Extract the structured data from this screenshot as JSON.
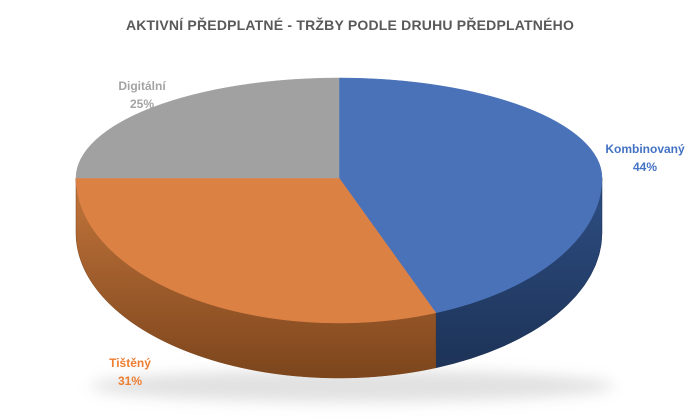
{
  "chart_data": {
    "type": "pie",
    "variant": "pie-3d",
    "title": "AKTIVNÍ PŘEDPLATNÉ - TRŽBY PODLE DRUHU PŘEDPLATNÉHO",
    "unit": "%",
    "start_angle_deg": 0,
    "direction": "clockwise",
    "legend": "none",
    "label_position": "outside",
    "categories": [
      "Kombinovaný",
      "Tištěný",
      "Digitální"
    ],
    "values": [
      44,
      31,
      25
    ],
    "slices": [
      {
        "id": "kombinovany",
        "label": "Kombinovaný",
        "value_pct": 44,
        "pct_text": "44%",
        "top_color": "#4A72B9",
        "side_color_light": "#2E4E84",
        "side_color_dark": "#1D3357",
        "label_color": "#4472C4"
      },
      {
        "id": "tisteny",
        "label": "Tištěný",
        "value_pct": 31,
        "pct_text": "31%",
        "top_color": "#DC8144",
        "side_color_light": "#C4763C",
        "side_color_dark": "#7C451C",
        "label_color": "#ED7D31"
      },
      {
        "id": "digitalni",
        "label": "Digitální",
        "value_pct": 25,
        "pct_text": "25%",
        "top_color": "#A1A1A1",
        "side_color_light": "#8C8C8C",
        "side_color_dark": "#6E6E6E",
        "label_color": "#A3A3A3"
      }
    ]
  }
}
